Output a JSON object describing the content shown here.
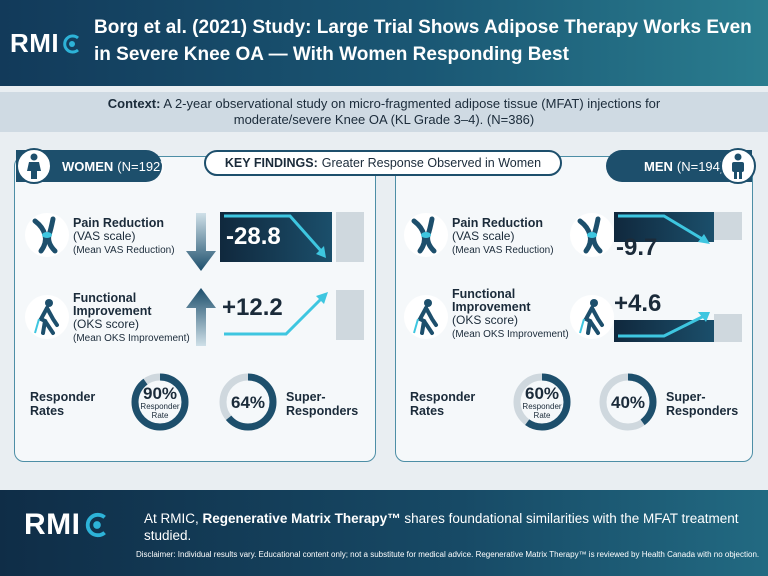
{
  "header": {
    "logo_text": "RMI",
    "title": "Borg et al. (2021) Study: Large Trial Shows Adipose Therapy Works Even in Severe Knee OA — With Women Responding Best"
  },
  "context": {
    "label": "Context:",
    "text": "A 2-year observational study on micro-fragmented adipose tissue (MFAT) injections for moderate/severe Knee OA (KL Grade 3–4). (N=386)"
  },
  "key_findings": {
    "label": "KEY FINDINGS:",
    "text": "Greater Response Observed in Women"
  },
  "women": {
    "label": "WOMEN",
    "count": "(N=192)",
    "pain": {
      "title": "Pain Reduction",
      "scale": "(VAS scale)",
      "sub": "(Mean VAS Reduction)",
      "value": "-28.8"
    },
    "function": {
      "title_1": "Functional",
      "title_2": "Improvement",
      "scale": "(OKS score)",
      "sub": "(Mean OKS Improvement)",
      "value": "+12.2"
    },
    "responder": {
      "label_1": "Responder",
      "label_2": "Rates",
      "pct": "90%",
      "pct_value": 90,
      "ring_label_1": "Responder",
      "ring_label_2": "Rate"
    },
    "super": {
      "pct": "64%",
      "pct_value": 64,
      "label_1": "Super-",
      "label_2": "Responders"
    }
  },
  "men": {
    "label": "MEN",
    "count": "(N=194)",
    "pain": {
      "title": "Pain Reduction",
      "scale": "(VAS scale)",
      "sub": "(Mean VAS Reduction)",
      "value": "-9.7"
    },
    "function": {
      "title_1": "Functional",
      "title_2": "Improvement",
      "scale": "(OKS score)",
      "sub": "(Mean OKS Improvement)",
      "value": "+4.6"
    },
    "responder": {
      "label_1": "Responder",
      "label_2": "Rates",
      "pct": "60%",
      "pct_value": 60,
      "ring_label_1": "Responder",
      "ring_label_2": "Rate"
    },
    "super": {
      "pct": "40%",
      "pct_value": 40,
      "label_1": "Super-",
      "label_2": "Responders"
    }
  },
  "footer": {
    "logo_text": "RMI",
    "text_prefix": "At RMIC,",
    "brand": "Regenerative Matrix Therapy™",
    "text_suffix": "shares foundational similarities with the MFAT treatment studied.",
    "disclaimer": "Disclaimer: Individual results vary. Educational content only; not a substitute for medical advice. Regenerative Matrix Therapy™ is reviewed by Health Canada with no objection."
  },
  "colors": {
    "navy": "#1d4f6c",
    "accent_cyan": "#3ec6e0",
    "ring_track": "#cfd8de",
    "ring_fill": "#1d4f6c"
  },
  "icons": [
    "rmic-logo-icon",
    "woman-icon",
    "man-icon",
    "knee-joint-icon",
    "walking-person-icon",
    "down-arrow-icon",
    "up-arrow-icon",
    "trend-down-arrow-icon",
    "trend-up-arrow-icon"
  ]
}
